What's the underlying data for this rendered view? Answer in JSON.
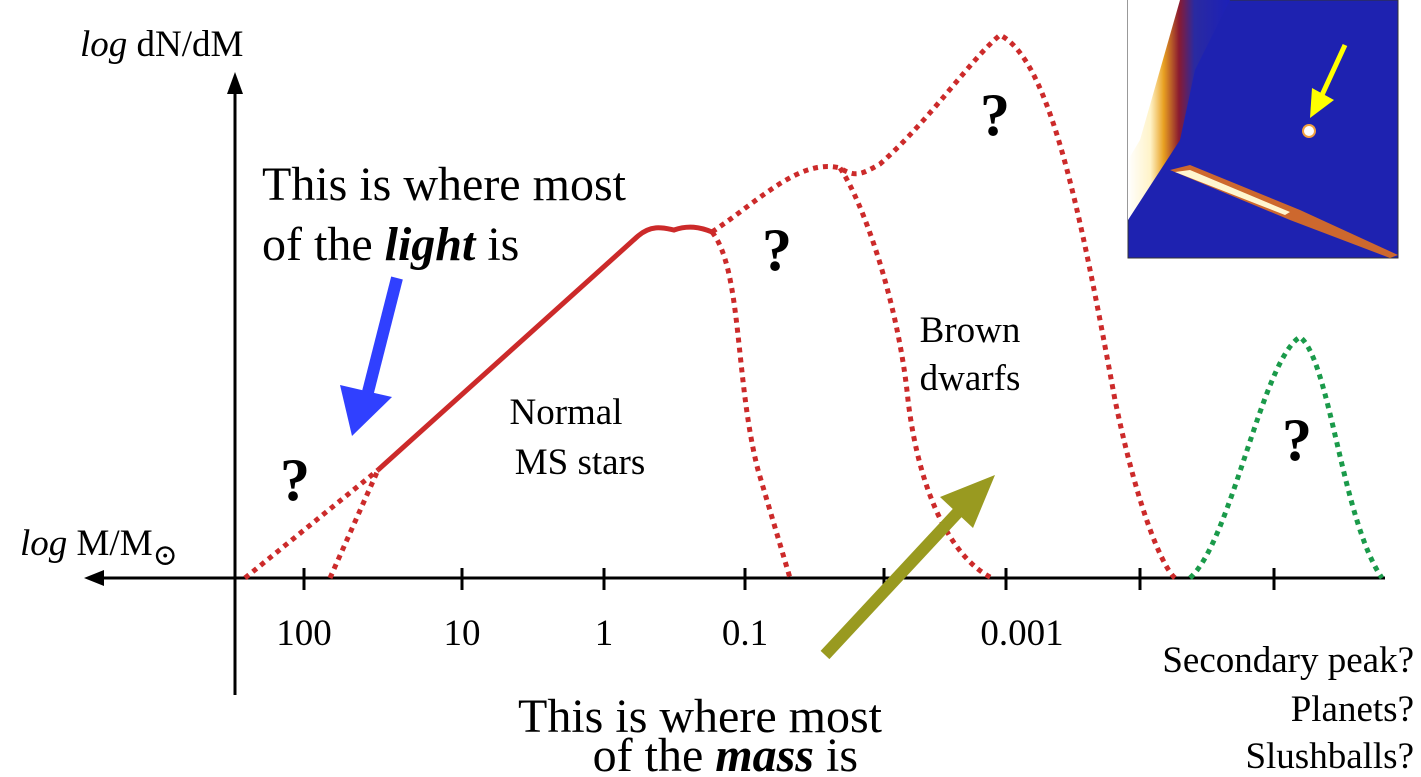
{
  "y_axis_label": {
    "italic": "log",
    "text": "dN/dM"
  },
  "x_axis_label": {
    "italic": "log",
    "text": "M/M",
    "subscript": "⊙"
  },
  "x_ticks": [
    "100",
    "10",
    "1",
    "0.1",
    "0.001"
  ],
  "light_note": {
    "line1": "This is where most",
    "line2_start": "of the",
    "emphasis": "light",
    "line2_end": "is"
  },
  "mass_note": {
    "line1": "This is where most",
    "line2_start": "of the",
    "emphasis": "mass",
    "line2_end": "is"
  },
  "normal_stars": [
    "Normal",
    "MS stars"
  ],
  "brown_dwarfs": [
    "Brown",
    "dwarfs"
  ],
  "question_marks": [
    "?",
    "?",
    "?",
    "?"
  ],
  "secondary_note": [
    "Secondary peak?",
    "Planets?",
    "Slushballs?"
  ]
}
